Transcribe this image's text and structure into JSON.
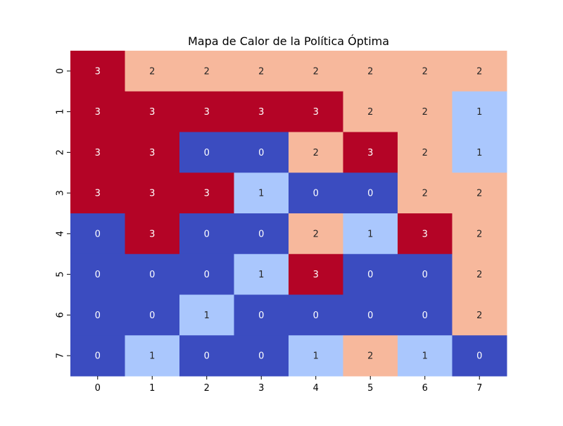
{
  "chart_data": {
    "type": "heatmap",
    "title": "Mapa de Calor de la Política Óptima",
    "xlabel": "",
    "ylabel": "",
    "x_categories": [
      "0",
      "1",
      "2",
      "3",
      "4",
      "5",
      "6",
      "7"
    ],
    "y_categories": [
      "0",
      "1",
      "2",
      "3",
      "4",
      "5",
      "6",
      "7"
    ],
    "values": [
      [
        3,
        2,
        2,
        2,
        2,
        2,
        2,
        2
      ],
      [
        3,
        3,
        3,
        3,
        3,
        2,
        2,
        1
      ],
      [
        3,
        3,
        0,
        0,
        2,
        3,
        2,
        1
      ],
      [
        3,
        3,
        3,
        1,
        0,
        0,
        2,
        2
      ],
      [
        0,
        3,
        0,
        0,
        2,
        1,
        3,
        2
      ],
      [
        0,
        0,
        0,
        1,
        3,
        0,
        0,
        2
      ],
      [
        0,
        0,
        1,
        0,
        0,
        0,
        0,
        2
      ],
      [
        0,
        1,
        0,
        0,
        1,
        2,
        1,
        0
      ]
    ],
    "value_colors": {
      "0": "#3b4cc0",
      "1": "#aac7fd",
      "2": "#f7b89c",
      "3": "#b40426"
    },
    "colormap": "coolwarm",
    "annotations": true,
    "colorbar": false,
    "grid": false
  }
}
